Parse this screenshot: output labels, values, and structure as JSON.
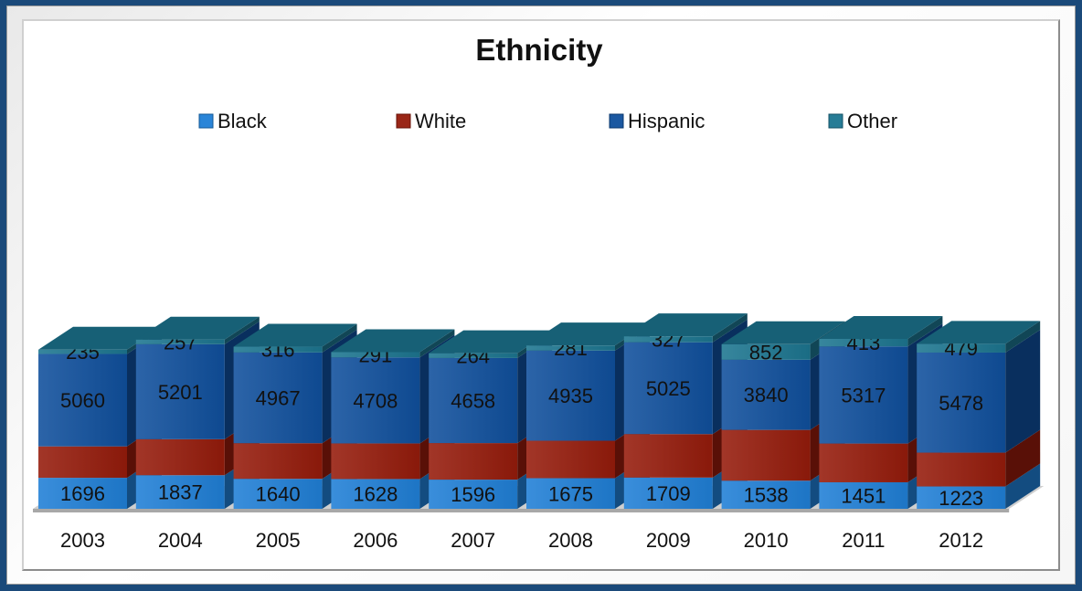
{
  "chart_data": {
    "type": "bar",
    "stacked": true,
    "style": "3d",
    "title": "Ethnicity",
    "xlabel": "",
    "ylabel": "",
    "legend_position": "top",
    "grid": false,
    "categories": [
      "2003",
      "2004",
      "2005",
      "2006",
      "2007",
      "2008",
      "2009",
      "2010",
      "2011",
      "2012"
    ],
    "series": [
      {
        "name": "Black",
        "color": "#1f7fd6",
        "show_labels": true,
        "values": [
          1696,
          1837,
          1640,
          1628,
          1596,
          1675,
          1709,
          1538,
          1451,
          1223
        ]
      },
      {
        "name": "White",
        "color": "#951b0b",
        "show_labels": false,
        "values": [
          1720,
          1970,
          1950,
          1950,
          2000,
          2050,
          2380,
          2780,
          2120,
          1850
        ]
      },
      {
        "name": "Hispanic",
        "color": "#0f4f9c",
        "show_labels": true,
        "values": [
          5060,
          5201,
          4967,
          4708,
          4658,
          4935,
          5025,
          3840,
          5317,
          5478
        ]
      },
      {
        "name": "Other",
        "color": "#1c7590",
        "show_labels": true,
        "values": [
          235,
          257,
          316,
          291,
          264,
          281,
          327,
          852,
          413,
          479
        ]
      }
    ]
  }
}
